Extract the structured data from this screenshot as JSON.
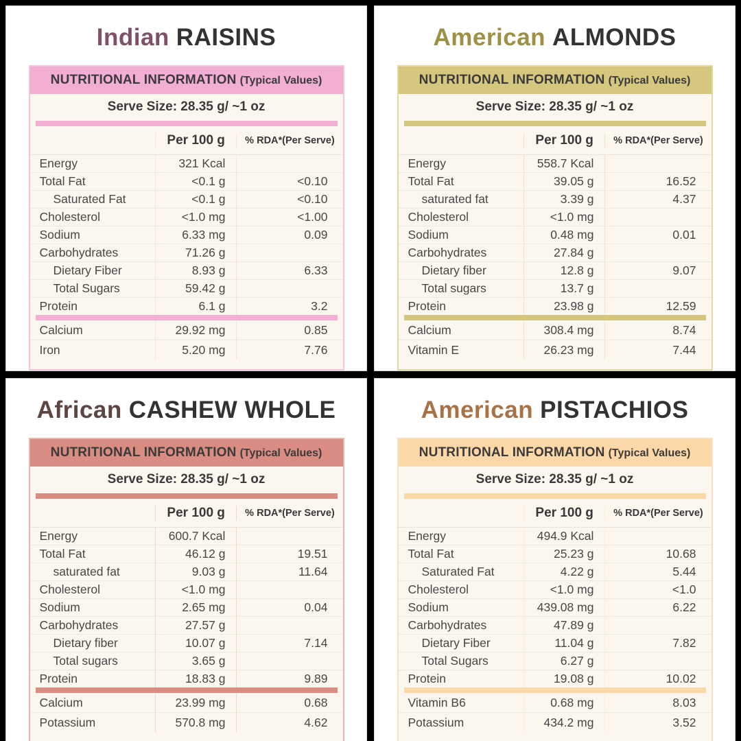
{
  "page": {
    "background": "#000000",
    "card_background": "#ffffff",
    "table_background": "#fcf7ee"
  },
  "cards": [
    {
      "id": "indian-raisins",
      "title_accent": "Indian",
      "title_rest": "RAISINS",
      "colors": {
        "accent": "#7f5169",
        "band": "#f3aed4",
        "border": "#f2c6dc",
        "divider": "#f6e0ea"
      },
      "table": {
        "header_main": "NUTRITIONAL INFORMATION",
        "header_note": "(Typical Values)",
        "serve": "Serve Size: 28.35 g/ ~1 oz",
        "col_value": "Per 100 g",
        "col_rda": "% RDA*(Per Serve)",
        "rows": [
          {
            "label": "Energy",
            "indent": false,
            "value": "321 Kcal",
            "rda": ""
          },
          {
            "label": "Total Fat",
            "indent": false,
            "value": "<0.1 g",
            "rda": "<0.10"
          },
          {
            "label": "Saturated Fat",
            "indent": true,
            "value": "<0.1 g",
            "rda": "<0.10"
          },
          {
            "label": "Cholesterol",
            "indent": false,
            "value": "<1.0 mg",
            "rda": "<1.00"
          },
          {
            "label": "Sodium",
            "indent": false,
            "value": "6.33 mg",
            "rda": "0.09"
          },
          {
            "label": "Carbohydrates",
            "indent": false,
            "value": "71.26 g",
            "rda": ""
          },
          {
            "label": "Dietary Fiber",
            "indent": true,
            "value": "8.93 g",
            "rda": "6.33"
          },
          {
            "label": "Total Sugars",
            "indent": true,
            "value": "59.42 g",
            "rda": ""
          },
          {
            "label": "Protein",
            "indent": false,
            "value": "6.1 g",
            "rda": "3.2"
          }
        ],
        "minerals": [
          {
            "label": "Calcium",
            "value": "29.92 mg",
            "rda": "0.85"
          },
          {
            "label": "Iron",
            "value": "5.20 mg",
            "rda": "7.76"
          }
        ]
      }
    },
    {
      "id": "american-almonds",
      "title_accent": "American",
      "title_rest": "ALMONDS",
      "colors": {
        "accent": "#9c9147",
        "band": "#d5c77e",
        "border": "#e2d8a4",
        "divider": "#eee5c8"
      },
      "table": {
        "header_main": "NUTRITIONAL INFORMATION",
        "header_note": "(Typical Values)",
        "serve": "Serve Size: 28.35 g/ ~1 oz",
        "col_value": "Per 100 g",
        "col_rda": "% RDA*(Per Serve)",
        "rows": [
          {
            "label": "Energy",
            "indent": false,
            "value": "558.7 Kcal",
            "rda": ""
          },
          {
            "label": "Total Fat",
            "indent": false,
            "value": "39.05 g",
            "rda": "16.52"
          },
          {
            "label": "saturated fat",
            "indent": true,
            "value": "3.39 g",
            "rda": "4.37"
          },
          {
            "label": "Cholesterol",
            "indent": false,
            "value": "<1.0 mg",
            "rda": ""
          },
          {
            "label": "Sodium",
            "indent": false,
            "value": "0.48 mg",
            "rda": "0.01"
          },
          {
            "label": "Carbohydrates",
            "indent": false,
            "value": "27.84 g",
            "rda": ""
          },
          {
            "label": "Dietary fiber",
            "indent": true,
            "value": "12.8 g",
            "rda": "9.07"
          },
          {
            "label": "Total sugars",
            "indent": true,
            "value": "13.7 g",
            "rda": ""
          },
          {
            "label": "Protein",
            "indent": false,
            "value": "23.98 g",
            "rda": "12.59"
          }
        ],
        "minerals": [
          {
            "label": "Calcium",
            "value": "308.4 mg",
            "rda": "8.74"
          },
          {
            "label": "Vitamin E",
            "value": "26.23 mg",
            "rda": "7.44"
          }
        ]
      }
    },
    {
      "id": "african-cashew-whole",
      "title_accent": "African",
      "title_rest": "CASHEW WHOLE",
      "colors": {
        "accent": "#5d4640",
        "band": "#d98d82",
        "border": "#edb6ad",
        "divider": "#f3d4cf"
      },
      "table": {
        "header_main": "NUTRITIONAL INFORMATION",
        "header_note": "(Typical Values)",
        "serve": "Serve Size: 28.35 g/ ~1 oz",
        "col_value": "Per 100 g",
        "col_rda": "% RDA*(Per Serve)",
        "rows": [
          {
            "label": "Energy",
            "indent": false,
            "value": "600.7 Kcal",
            "rda": ""
          },
          {
            "label": "Total Fat",
            "indent": false,
            "value": "46.12 g",
            "rda": "19.51"
          },
          {
            "label": "saturated fat",
            "indent": true,
            "value": "9.03 g",
            "rda": "11.64"
          },
          {
            "label": "Cholesterol",
            "indent": false,
            "value": "<1.0 mg",
            "rda": ""
          },
          {
            "label": "Sodium",
            "indent": false,
            "value": "2.65 mg",
            "rda": "0.04"
          },
          {
            "label": "Carbohydrates",
            "indent": false,
            "value": "27.57 g",
            "rda": ""
          },
          {
            "label": "Dietary fiber",
            "indent": true,
            "value": "10.07 g",
            "rda": "7.14"
          },
          {
            "label": "Total sugars",
            "indent": true,
            "value": "3.65 g",
            "rda": ""
          },
          {
            "label": "Protein",
            "indent": false,
            "value": "18.83 g",
            "rda": "9.89"
          }
        ],
        "minerals": [
          {
            "label": "Calcium",
            "value": "23.99 mg",
            "rda": "0.68"
          },
          {
            "label": "Potassium",
            "value": "570.8 mg",
            "rda": "4.62"
          }
        ]
      }
    },
    {
      "id": "american-pistachios",
      "title_accent": "American",
      "title_rest": "PISTACHIOS",
      "colors": {
        "accent": "#a97246",
        "band": "#fcd7a7",
        "border": "#fcdfc0",
        "divider": "#fdead2"
      },
      "table": {
        "header_main": "NUTRITIONAL INFORMATION",
        "header_note": "(Typical Values)",
        "serve": "Serve Size: 28.35 g/ ~1 oz",
        "col_value": "Per 100 g",
        "col_rda": "% RDA*(Per Serve)",
        "rows": [
          {
            "label": "Energy",
            "indent": false,
            "value": "494.9 Kcal",
            "rda": ""
          },
          {
            "label": "Total Fat",
            "indent": false,
            "value": "25.23 g",
            "rda": "10.68"
          },
          {
            "label": "Saturated Fat",
            "indent": true,
            "value": "4.22 g",
            "rda": "5.44"
          },
          {
            "label": "Cholesterol",
            "indent": false,
            "value": "<1.0 mg",
            "rda": "<1.0"
          },
          {
            "label": "Sodium",
            "indent": false,
            "value": "439.08 mg",
            "rda": "6.22"
          },
          {
            "label": "Carbohydrates",
            "indent": false,
            "value": "47.89 g",
            "rda": ""
          },
          {
            "label": "Dietary Fiber",
            "indent": true,
            "value": "11.04 g",
            "rda": "7.82"
          },
          {
            "label": "Total Sugars",
            "indent": true,
            "value": "6.27 g",
            "rda": ""
          },
          {
            "label": "Protein",
            "indent": false,
            "value": "19.08 g",
            "rda": "10.02"
          }
        ],
        "minerals": [
          {
            "label": "Vitamin B6",
            "value": "0.68 mg",
            "rda": "8.03"
          },
          {
            "label": "Potassium",
            "value": "434.2 mg",
            "rda": "3.52"
          }
        ]
      }
    }
  ]
}
